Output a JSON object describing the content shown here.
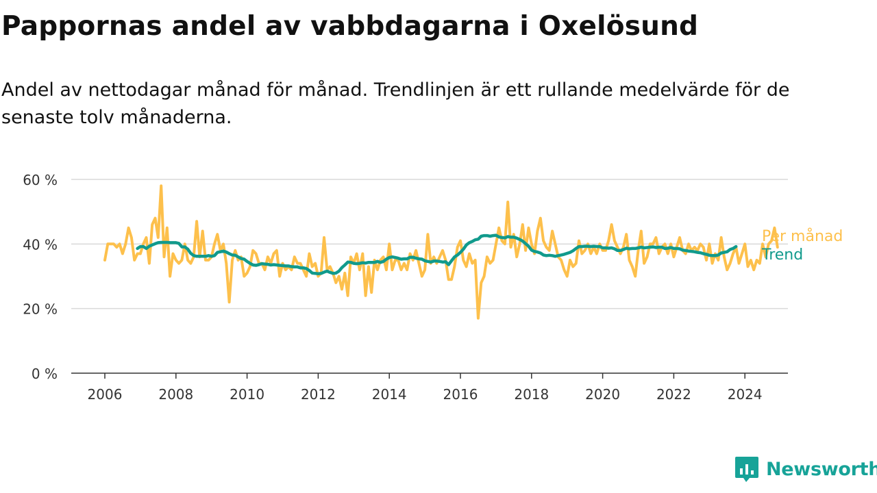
{
  "title": "Pappornas andel av vabbdagarna i Oxelösund",
  "subtitle": "Andel av nettodagar månad för månad. Trendlinjen är ett rullande medelvärde för de senaste tolv månaderna.",
  "brand": {
    "name": "Newsworthy",
    "logo_icon": "newsworthy-logo-icon",
    "color": "#17a398"
  },
  "chart_data": {
    "type": "line",
    "x_unit": "year (decimal, monthly observations)",
    "y_unit": "%",
    "xlim": [
      2005.6,
      2025.2
    ],
    "ylim": [
      0,
      60
    ],
    "x_ticks": [
      2006,
      2008,
      2010,
      2012,
      2014,
      2016,
      2018,
      2020,
      2022,
      2024
    ],
    "x_tick_labels": [
      "2006",
      "2008",
      "2010",
      "2012",
      "2014",
      "2016",
      "2018",
      "2020",
      "2022",
      "2024"
    ],
    "y_ticks": [
      0,
      20,
      40,
      60
    ],
    "y_tick_labels": [
      "0 %",
      "20 %",
      "40 %",
      "60 %"
    ],
    "grid": "horizontal",
    "legend": "direct labels at line ends (right)",
    "series": [
      {
        "name": "Per månad",
        "color": "#fdc04c",
        "x_start": 2006.0,
        "x_step": 0.083333,
        "values": [
          35,
          40,
          40,
          40,
          39,
          40,
          37,
          40,
          45,
          42,
          35,
          37,
          37,
          40,
          42,
          34,
          46,
          48,
          42,
          58,
          36,
          45,
          30,
          37,
          35,
          34,
          35,
          40,
          35,
          34,
          36,
          47,
          36,
          44,
          35,
          35,
          36,
          40,
          43,
          38,
          40,
          34,
          22,
          35,
          38,
          35,
          36,
          30,
          31,
          33,
          38,
          37,
          34,
          34,
          32,
          36,
          34,
          37,
          38,
          30,
          34,
          32,
          33,
          32,
          36,
          34,
          34,
          32,
          30,
          37,
          33,
          34,
          30,
          31,
          42,
          32,
          33,
          31,
          28,
          30,
          26,
          31,
          24,
          36,
          34,
          37,
          32,
          37,
          24,
          33,
          25,
          35,
          32,
          35,
          36,
          32,
          40,
          32,
          35,
          35,
          32,
          34,
          32,
          37,
          35,
          38,
          34,
          30,
          32,
          43,
          34,
          36,
          34,
          36,
          38,
          35,
          29,
          29,
          33,
          39,
          41,
          35,
          33,
          37,
          34,
          35,
          17,
          28,
          30,
          36,
          34,
          35,
          40,
          45,
          41,
          40,
          53,
          39,
          43,
          36,
          40,
          46,
          38,
          45,
          40,
          37,
          44,
          48,
          41,
          39,
          38,
          44,
          40,
          36,
          35,
          32,
          30,
          35,
          33,
          34,
          41,
          37,
          38,
          40,
          37,
          39,
          37,
          40,
          38,
          38,
          41,
          46,
          41,
          39,
          37,
          39,
          43,
          35,
          33,
          30,
          38,
          44,
          34,
          36,
          40,
          40,
          42,
          37,
          39,
          40,
          37,
          40,
          36,
          39,
          42,
          38,
          37,
          40,
          38,
          39,
          38,
          40,
          39,
          35,
          40,
          34,
          37,
          35,
          42,
          36,
          32,
          34,
          37,
          39,
          34,
          37,
          40,
          33,
          35,
          32,
          35,
          34,
          40,
          36,
          40,
          41,
          45,
          39
        ]
      },
      {
        "name": "Trend",
        "color": "#119a8c",
        "x_start": 2006.917,
        "x_step": 0.083333,
        "values": [
          38.6,
          39.2,
          39.2,
          38.6,
          39.3,
          39.7,
          40.1,
          40.4,
          40.5,
          40.5,
          40.5,
          40.4,
          40.4,
          40.4,
          40.2,
          39.1,
          39.1,
          38.4,
          37.1,
          36.4,
          36.2,
          36.2,
          36.2,
          36.2,
          36.4,
          36.2,
          36.4,
          37.4,
          37.6,
          37.8,
          37.5,
          37.0,
          36.6,
          36.5,
          36.0,
          35.5,
          35.3,
          34.6,
          34.0,
          33.5,
          33.4,
          33.6,
          33.9,
          33.8,
          33.7,
          33.5,
          33.6,
          33.5,
          33.4,
          33.3,
          33.2,
          33.2,
          33.0,
          32.9,
          32.9,
          32.6,
          32.6,
          32.4,
          31.8,
          31.0,
          30.9,
          30.8,
          30.9,
          31.3,
          31.6,
          31.2,
          30.9,
          31.0,
          31.6,
          32.7,
          33.5,
          34.4,
          34.3,
          34.0,
          33.9,
          34.0,
          34.2,
          34.1,
          34.3,
          34.3,
          34.3,
          34.6,
          34.3,
          34.6,
          35.3,
          35.8,
          36.0,
          35.8,
          35.6,
          35.3,
          35.4,
          35.4,
          35.9,
          35.9,
          35.6,
          35.4,
          35.3,
          34.8,
          34.6,
          34.4,
          34.7,
          34.7,
          34.6,
          34.4,
          34.5,
          33.6,
          34.8,
          36.0,
          36.6,
          37.4,
          38.4,
          39.7,
          40.4,
          40.8,
          41.3,
          41.5,
          42.4,
          42.6,
          42.6,
          42.4,
          42.6,
          42.7,
          42.2,
          42.0,
          41.9,
          42.3,
          42.1,
          42.1,
          41.8,
          41.4,
          40.9,
          40.1,
          39.3,
          38.1,
          37.7,
          37.5,
          37.2,
          36.6,
          36.4,
          36.5,
          36.4,
          36.2,
          36.4,
          36.6,
          36.8,
          37.1,
          37.4,
          37.9,
          38.6,
          39.2,
          39.2,
          39.3,
          39.3,
          39.2,
          39.3,
          39.2,
          39.2,
          38.8,
          38.8,
          38.7,
          38.8,
          38.5,
          38.0,
          38.0,
          38.3,
          38.7,
          38.5,
          38.6,
          38.6,
          38.8,
          39.0,
          38.8,
          38.9,
          39.0,
          39.1,
          38.9,
          39.0,
          39.0,
          38.6,
          38.7,
          38.9,
          38.6,
          38.6,
          38.5,
          38.1,
          38.0,
          37.8,
          37.7,
          37.6,
          37.4,
          37.3,
          37.0,
          36.8,
          36.5,
          36.4,
          36.4,
          36.6,
          37.2,
          37.4,
          37.6,
          38.3,
          38.6,
          39.2
        ]
      }
    ]
  }
}
